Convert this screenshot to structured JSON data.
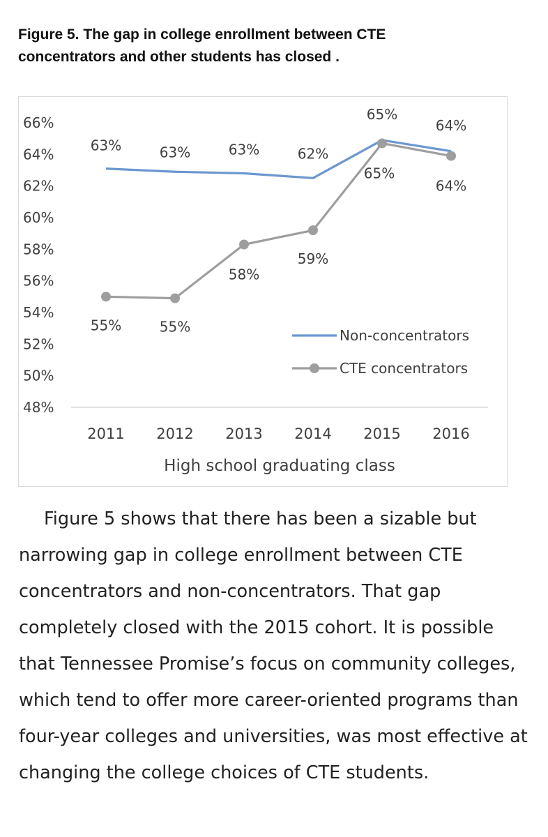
{
  "figure": {
    "title_line1": "Figure 5. The gap in college enrollment between CTE",
    "title_line2": "concentrators and other students has closed ."
  },
  "chart_data": {
    "type": "line",
    "categories": [
      "2011",
      "2012",
      "2013",
      "2014",
      "2015",
      "2016"
    ],
    "xlabel": "High school graduating class",
    "ylabel": "",
    "ylim": [
      48,
      66
    ],
    "yticks": [
      "48%",
      "50%",
      "52%",
      "54%",
      "56%",
      "58%",
      "60%",
      "62%",
      "64%",
      "66%"
    ],
    "grid": "baseline only",
    "legend_position": "lower-right",
    "series": [
      {
        "name": "Non-concentrators",
        "values": [
          63.1,
          62.9,
          62.8,
          62.5,
          64.9,
          64.2
        ],
        "labels": [
          "63%",
          "63%",
          "63%",
          "62%",
          "65%",
          "64%"
        ],
        "color": "#6b97cf",
        "marker": "none"
      },
      {
        "name": "CTE concentrators",
        "values": [
          55.0,
          54.9,
          58.3,
          59.2,
          64.7,
          63.9
        ],
        "labels": [
          "55%",
          "55%",
          "58%",
          "59%",
          "65%",
          "64%"
        ],
        "color": "#9e9e9e",
        "marker": "circle"
      }
    ]
  },
  "body": {
    "paragraph": "Figure 5 shows that there has been a sizable but narrowing gap in college enrollment between CTE concentrators and non-concentrators. That gap completely closed with the 2015 cohort. It is possible that Tennessee Promise’s focus on community colleges, which tend to offer more career-oriented programs than four-year colleges and universities, was most effective at changing the college choices of CTE students."
  }
}
